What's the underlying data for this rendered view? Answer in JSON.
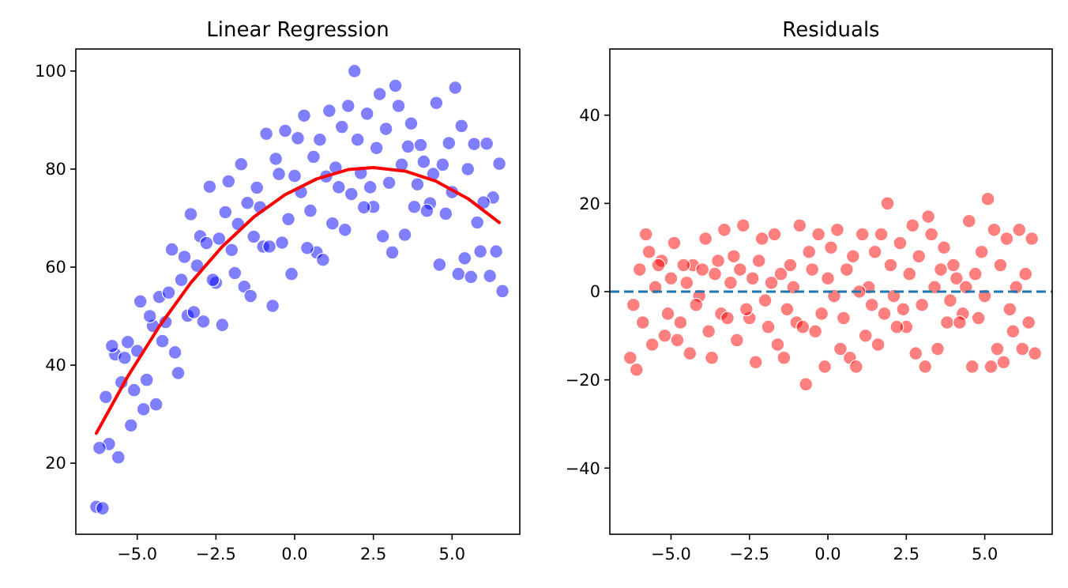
{
  "chart_data": [
    {
      "type": "scatter",
      "title": "Linear Regression",
      "xlim": [
        -6.95,
        7.15
      ],
      "xticks": [
        {
          "value": -5,
          "label": "−5.0"
        },
        {
          "value": -2.5,
          "label": "−2.5"
        },
        {
          "value": 0,
          "label": "0.0"
        },
        {
          "value": 2.5,
          "label": "2.5"
        },
        {
          "value": 5,
          "label": "5.0"
        }
      ],
      "ylim": [
        5.5,
        104.5
      ],
      "yticks": [
        20,
        40,
        60,
        80,
        100
      ],
      "series": [
        {
          "marker": "circle",
          "color": "#0000ff",
          "x": [
            -6.3,
            -6.1,
            -5.9,
            -5.7,
            -5.5,
            -5.3,
            -5.1,
            -4.9,
            -4.7,
            -4.5,
            -4.3,
            -4.1,
            -3.9,
            -3.7,
            -3.5,
            -3.3,
            -3.1,
            -2.9,
            -2.7,
            -2.5,
            -2.3,
            -2.1,
            -1.9,
            -1.7,
            -1.5,
            -1.3,
            -1.1,
            -0.9,
            -0.7,
            -0.5,
            -0.3,
            -0.1,
            0.1,
            0.3,
            0.5,
            0.7,
            0.9,
            1.1,
            1.3,
            1.5,
            1.7,
            1.9,
            2.1,
            2.3,
            2.5,
            2.7,
            2.9,
            3.1,
            3.3,
            3.5,
            3.7,
            3.9,
            4.1,
            4.3,
            4.5,
            4.7,
            4.9,
            5.1,
            5.3,
            5.5,
            5.7,
            5.9,
            6.1,
            6.3,
            6.5,
            -6.2,
            -6.0,
            -5.8,
            -5.6,
            -5.4,
            -5.2,
            -5.0,
            -4.8,
            -4.6,
            -4.4,
            -4.2,
            -4.0,
            -3.8,
            -3.6,
            -3.4,
            -3.2,
            -3.0,
            -2.8,
            -2.6,
            -2.4,
            -2.2,
            -2.0,
            -1.8,
            -1.6,
            -1.4,
            -1.2,
            -1.0,
            -0.8,
            -0.6,
            -0.4,
            -0.2,
            0.0,
            0.2,
            0.4,
            0.6,
            0.8,
            1.0,
            1.2,
            1.4,
            1.6,
            1.8,
            2.0,
            2.2,
            2.4,
            2.6,
            2.8,
            3.0,
            3.2,
            3.4,
            3.6,
            3.8,
            4.0,
            4.2,
            4.4,
            4.6,
            4.8,
            5.0,
            5.2,
            5.4,
            5.6,
            5.8,
            6.0,
            6.2,
            6.4,
            6.6
          ],
          "values": [
            11.1,
            10.8,
            23.9,
            42.2,
            36.5,
            44.7,
            34.9,
            53.0,
            37.0,
            48.0,
            53.9,
            48.8,
            63.6,
            38.4,
            62.1,
            70.8,
            60.3,
            48.9,
            76.4,
            56.8,
            48.2,
            77.5,
            58.8,
            81.0,
            73.1,
            66.2,
            72.2,
            87.2,
            52.1,
            79.0,
            87.8,
            58.6,
            86.3,
            90.9,
            71.5,
            63.0,
            61.5,
            91.9,
            80.3,
            88.6,
            92.9,
            100.0,
            79.2,
            91.3,
            72.3,
            95.3,
            88.2,
            63.0,
            92.9,
            66.6,
            89.3,
            76.9,
            81.5,
            73.0,
            93.5,
            80.9,
            85.3,
            96.6,
            88.8,
            80.0,
            85.1,
            63.2,
            85.2,
            74.2,
            81.1,
            23.1,
            33.5,
            43.9,
            21.2,
            41.5,
            27.7,
            42.9,
            31.0,
            50.0,
            32.0,
            44.9,
            54.8,
            42.6,
            57.4,
            50.1,
            50.8,
            66.3,
            64.9,
            57.4,
            65.8,
            71.2,
            63.5,
            68.8,
            56.0,
            54.1,
            76.2,
            64.2,
            64.2,
            82.1,
            65.0,
            69.8,
            78.6,
            75.3,
            63.9,
            82.5,
            86.0,
            78.5,
            68.9,
            76.3,
            67.6,
            74.9,
            86.0,
            72.2,
            76.3,
            84.3,
            66.3,
            77.2,
            97.0,
            80.9,
            84.6,
            72.3,
            84.9,
            71.5,
            79.0,
            60.5,
            70.9,
            75.3,
            58.6,
            61.8,
            58.0,
            69.1,
            73.2,
            58.2,
            63.2,
            55.1
          ]
        },
        {
          "type": "line",
          "color": "#ff0000",
          "x": [
            -6.3,
            -5.3,
            -4.3,
            -3.3,
            -2.3,
            -1.3,
            -0.3,
            0.7,
            1.7,
            2.5,
            3.5,
            4.5,
            5.5,
            6.5
          ],
          "values": [
            26.1,
            37.7,
            47.9,
            56.8,
            64.2,
            70.2,
            74.8,
            78.0,
            79.9,
            80.3,
            79.6,
            77.5,
            74.0,
            69.1
          ]
        }
      ]
    },
    {
      "type": "scatter",
      "title": "Residuals",
      "xlim": [
        -6.95,
        7.15
      ],
      "xticks": [
        {
          "value": -5,
          "label": "−5.0"
        },
        {
          "value": -2.5,
          "label": "−2.5"
        },
        {
          "value": 0,
          "label": "0.0"
        },
        {
          "value": 2.5,
          "label": "2.5"
        },
        {
          "value": 5,
          "label": "5.0"
        }
      ],
      "ylim": [
        -55,
        55
      ],
      "yticks": [
        {
          "value": -40,
          "label": "−40"
        },
        {
          "value": -20,
          "label": "−20"
        },
        0,
        20,
        40
      ],
      "ref_lines": [
        {
          "axis": "y",
          "value": 0,
          "color": "#1f77b4",
          "line_style": "dashed"
        }
      ],
      "series": [
        {
          "marker": "circle",
          "color": "#ff0000",
          "x": [
            -6.3,
            -6.1,
            -5.9,
            -5.7,
            -5.5,
            -5.3,
            -5.1,
            -4.9,
            -4.7,
            -4.5,
            -4.3,
            -4.1,
            -3.9,
            -3.7,
            -3.5,
            -3.3,
            -3.1,
            -2.9,
            -2.7,
            -2.5,
            -2.3,
            -2.1,
            -1.9,
            -1.7,
            -1.5,
            -1.3,
            -1.1,
            -0.9,
            -0.7,
            -0.5,
            -0.3,
            -0.1,
            0.1,
            0.3,
            0.5,
            0.7,
            0.9,
            1.1,
            1.3,
            1.5,
            1.7,
            1.9,
            2.1,
            2.3,
            2.5,
            2.7,
            2.9,
            3.1,
            3.3,
            3.5,
            3.7,
            3.9,
            4.1,
            4.3,
            4.5,
            4.7,
            4.9,
            5.1,
            5.3,
            5.5,
            5.7,
            5.9,
            6.1,
            6.3,
            6.5,
            -6.2,
            -6.0,
            -5.8,
            -5.6,
            -5.4,
            -5.2,
            -5.0,
            -4.8,
            -4.6,
            -4.4,
            -4.2,
            -4.0,
            -3.8,
            -3.6,
            -3.4,
            -3.2,
            -3.0,
            -2.8,
            -2.6,
            -2.4,
            -2.2,
            -2.0,
            -1.8,
            -1.6,
            -1.4,
            -1.2,
            -1.0,
            -0.8,
            -0.6,
            -0.4,
            -0.2,
            0.0,
            0.2,
            0.4,
            0.6,
            0.8,
            1.0,
            1.2,
            1.4,
            1.6,
            1.8,
            2.0,
            2.2,
            2.4,
            2.6,
            2.8,
            3.0,
            3.2,
            3.4,
            3.6,
            3.8,
            4.0,
            4.2,
            4.4,
            4.6,
            4.8,
            5.0,
            5.2,
            5.4,
            5.6,
            5.8,
            6.0,
            6.2,
            6.4,
            6.6
          ],
          "values": [
            -15,
            -17.7,
            -7,
            9,
            1,
            7,
            -5,
            11,
            -7,
            2,
            6,
            -1,
            12,
            -15,
            7,
            14,
            2,
            -11,
            15,
            -6,
            -16,
            12,
            -8,
            13,
            4,
            -4,
            1,
            15,
            -21,
            5,
            13,
            -17,
            10,
            14,
            -6,
            -15,
            -17,
            13,
            1,
            9,
            13,
            20,
            -1,
            11,
            -8,
            15,
            8,
            -17,
            13,
            -13,
            10,
            -2,
            3,
            -5,
            16,
            4,
            9,
            21,
            14,
            6,
            12,
            -9,
            14,
            4,
            12,
            -3,
            5,
            13,
            -12,
            6,
            -10,
            3,
            -11,
            6,
            -14,
            -3,
            5,
            -9,
            4,
            -5,
            -6,
            8,
            5,
            -4,
            3,
            7,
            -2,
            2,
            -12,
            -15,
            6,
            -7,
            -8,
            9,
            -9,
            -5,
            3,
            -1,
            -13,
            5,
            8,
            0,
            -10,
            -3,
            -12,
            -5,
            6,
            -8,
            -4,
            4,
            -14,
            -3,
            17,
            1,
            5,
            -7,
            6,
            -7,
            1,
            -17,
            -6,
            -1,
            -17,
            -13,
            -16,
            -4,
            1,
            -13,
            -7,
            -14
          ]
        }
      ]
    }
  ]
}
